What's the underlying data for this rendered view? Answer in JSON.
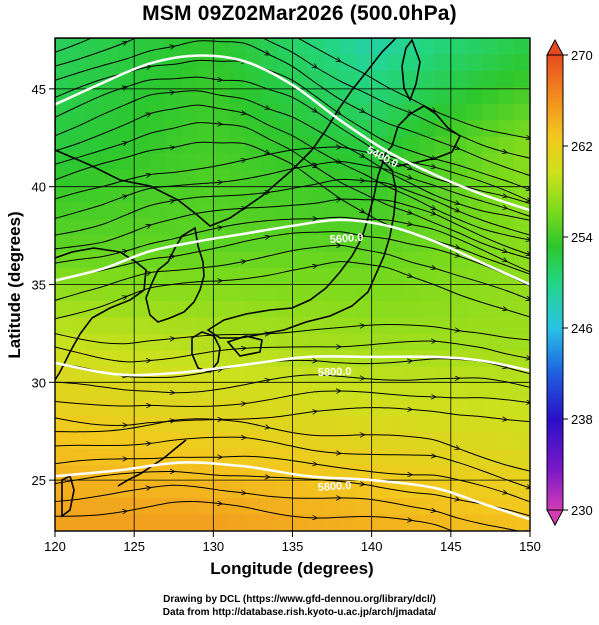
{
  "title": "MSM 09Z02Mar2026 (500.0hPa)",
  "axes": {
    "xlabel": "Longitude (degrees)",
    "ylabel": "Latitude  (degrees)",
    "xticks": [
      "120",
      "125",
      "130",
      "135",
      "140",
      "145",
      "150"
    ],
    "yticks": [
      "25",
      "30",
      "35",
      "40",
      "45"
    ],
    "xlim": [
      120,
      150
    ],
    "ylim": [
      22.4,
      47.6
    ]
  },
  "colorbar": {
    "min": 230,
    "max": 270,
    "ticks": [
      "270",
      "262",
      "254",
      "246",
      "238",
      "230"
    ],
    "colors": [
      "#d23cb4",
      "#7a18c8",
      "#2a10c8",
      "#1f5fe0",
      "#29c3e6",
      "#23d685",
      "#2dc72d",
      "#7edb1c",
      "#cce11e",
      "#f3c81e",
      "#f28a1e",
      "#e84a20"
    ]
  },
  "contour_labels": [
    "5400.0",
    "5600.0",
    "5800.0"
  ],
  "credits": {
    "line1": "Drawing by DCL (https://www.gfd-dennou.org/library/dcl/)",
    "line2": "Data from http://database.rish.kyoto-u.ac.jp/arch/jmadata/"
  },
  "chart_data": {
    "type": "heatmap",
    "title": "MSM 09Z02Mar2026 (500.0hPa)",
    "xlabel": "Longitude (degrees)",
    "ylabel": "Latitude  (degrees)",
    "xlim": [
      120,
      150
    ],
    "ylim": [
      22.4,
      47.6
    ],
    "color_range": [
      230,
      270
    ],
    "temperature_field_approx": [
      {
        "lat": 47,
        "lon_values": {
          "120": 250,
          "130": 252,
          "140": 247,
          "150": 251
        }
      },
      {
        "lat": 42,
        "lon_values": {
          "120": 251,
          "130": 253,
          "140": 251,
          "150": 256
        }
      },
      {
        "lat": 37,
        "lon_values": {
          "120": 254,
          "130": 254,
          "140": 254,
          "150": 256
        }
      },
      {
        "lat": 32,
        "lon_values": {
          "120": 259,
          "130": 258,
          "140": 257,
          "150": 257
        }
      },
      {
        "lat": 27,
        "lon_values": {
          "120": 263,
          "130": 262,
          "140": 261,
          "150": 260
        }
      },
      {
        "lat": 23,
        "lon_values": {
          "120": 265,
          "130": 265,
          "140": 264,
          "150": 263
        }
      }
    ],
    "height_contours": [
      {
        "value": "5400.0",
        "points": [
          [
            120,
            44.2
          ],
          [
            123,
            45.3
          ],
          [
            126,
            46.3
          ],
          [
            129,
            46.7
          ],
          [
            132,
            46.4
          ],
          [
            135,
            45.2
          ],
          [
            138,
            43.4
          ],
          [
            141,
            41.8
          ],
          [
            144,
            40.6
          ],
          [
            147,
            39.6
          ],
          [
            150,
            38.8
          ]
        ]
      },
      {
        "value": "5600.0",
        "points": [
          [
            120,
            35.2
          ],
          [
            123,
            35.8
          ],
          [
            126,
            36.7
          ],
          [
            129,
            37.2
          ],
          [
            132,
            37.6
          ],
          [
            135,
            38.0
          ],
          [
            138,
            38.3
          ],
          [
            141,
            38.0
          ],
          [
            144,
            37.2
          ],
          [
            147,
            36.1
          ],
          [
            150,
            35.0
          ]
        ]
      },
      {
        "value": "5800.0",
        "points": [
          [
            120,
            31.0
          ],
          [
            124,
            30.4
          ],
          [
            128,
            30.5
          ],
          [
            132,
            30.9
          ],
          [
            136,
            31.3
          ],
          [
            140,
            31.3
          ],
          [
            144,
            31.3
          ],
          [
            147,
            31.1
          ],
          [
            150,
            30.6
          ]
        ]
      },
      {
        "value": "",
        "points": [
          [
            120,
            25.2
          ],
          [
            124,
            25.5
          ],
          [
            128,
            25.9
          ],
          [
            132,
            25.7
          ],
          [
            136,
            25.2
          ],
          [
            140,
            25.0
          ],
          [
            144,
            24.6
          ],
          [
            147,
            23.8
          ],
          [
            150,
            23.0
          ]
        ]
      }
    ],
    "wind": "streamlines, predominantly westerly"
  }
}
